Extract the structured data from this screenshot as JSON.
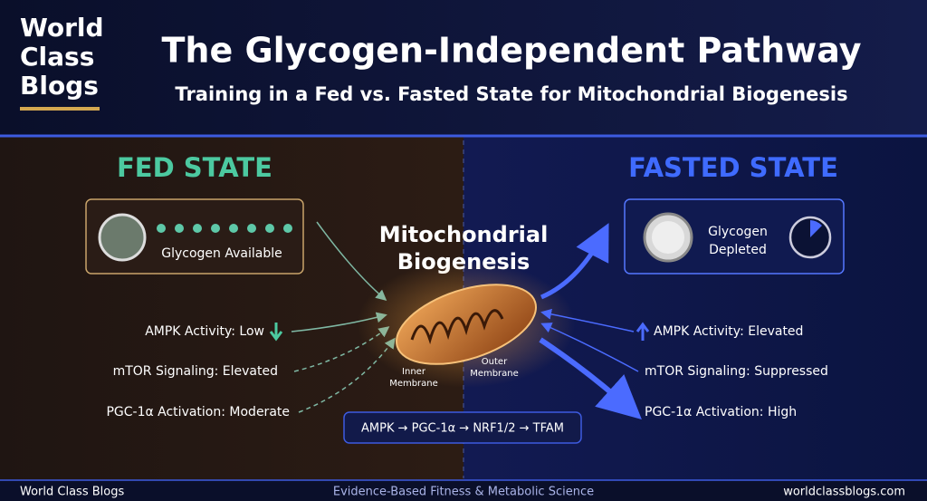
{
  "logo": [
    "World",
    "Class",
    "Blogs"
  ],
  "header": {
    "title": "The Glycogen-Independent Pathway",
    "subtitle": "Training in a Fed vs. Fasted State for Mitochondrial Biogenesis"
  },
  "fed": {
    "heading": "FED STATE",
    "box": "Glycogen Available",
    "items": [
      "AMPK Activity: Low",
      "mTOR Signaling: Elevated",
      "PGC-1α Activation: Moderate"
    ]
  },
  "center": {
    "title": [
      "Mitochondrial",
      "Biogenesis"
    ],
    "inner": [
      "Inner",
      "Membrane"
    ],
    "outer": [
      "Outer",
      "Membrane"
    ],
    "pathway": "AMPK → PGC-1α → NRF1/2 → TFAM"
  },
  "fasted": {
    "heading": "FASTED STATE",
    "box": [
      "Glycogen",
      "Depleted"
    ],
    "items": [
      "AMPK Activity: Elevated",
      "mTOR Signaling: Suppressed",
      "PGC-1α Activation: High"
    ]
  },
  "footer": {
    "left": "World Class Blogs",
    "center": "Evidence-Based Fitness & Metabolic Science",
    "right": "worldclassblogs.com"
  }
}
